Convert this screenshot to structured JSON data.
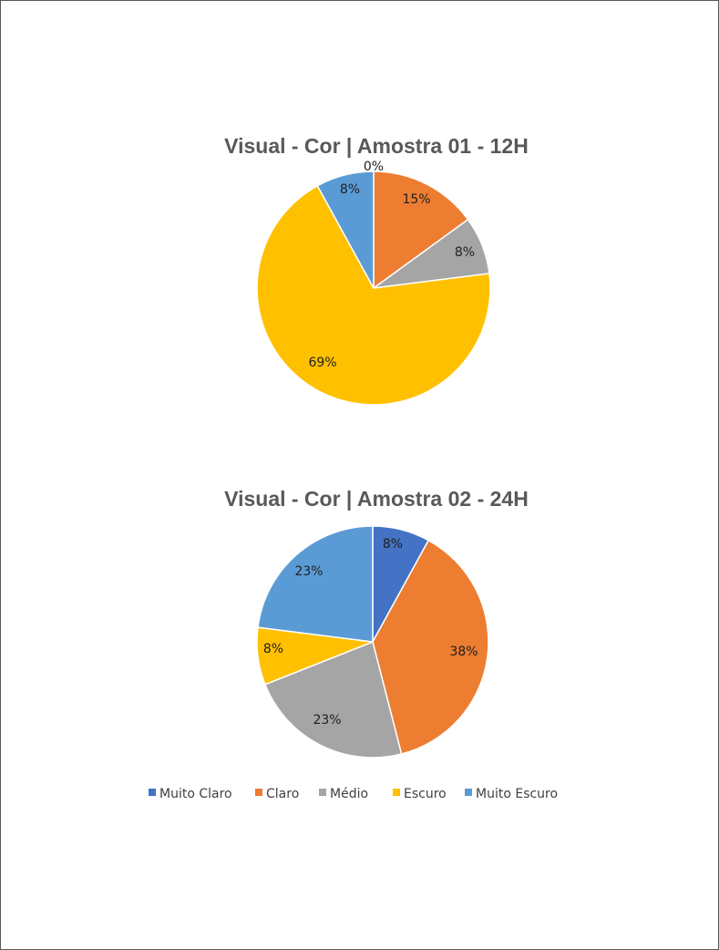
{
  "legend": [
    "Muito Claro",
    "Claro",
    "Médio",
    "Escuro",
    "Muito Escuro"
  ],
  "colors": [
    "#4472C4",
    "#ED7D31",
    "#A5A5A5",
    "#FFC000",
    "#5B9BD5"
  ],
  "chart_data": [
    {
      "type": "pie",
      "title": "Visual - Cor | Amostra 01 - 12H",
      "categories": [
        "Muito Claro",
        "Claro",
        "Médio",
        "Escuro",
        "Muito Escuro"
      ],
      "values": [
        0,
        15,
        8,
        69,
        8
      ],
      "labels": [
        "0%",
        "15%",
        "8%",
        "69%",
        "8%"
      ]
    },
    {
      "type": "pie",
      "title": "Visual - Cor | Amostra 02 - 24H",
      "categories": [
        "Muito Claro",
        "Claro",
        "Médio",
        "Escuro",
        "Muito Escuro"
      ],
      "values": [
        8,
        38,
        23,
        8,
        23
      ],
      "labels": [
        "8%",
        "38%",
        "23%",
        "8%",
        "23%"
      ]
    }
  ]
}
